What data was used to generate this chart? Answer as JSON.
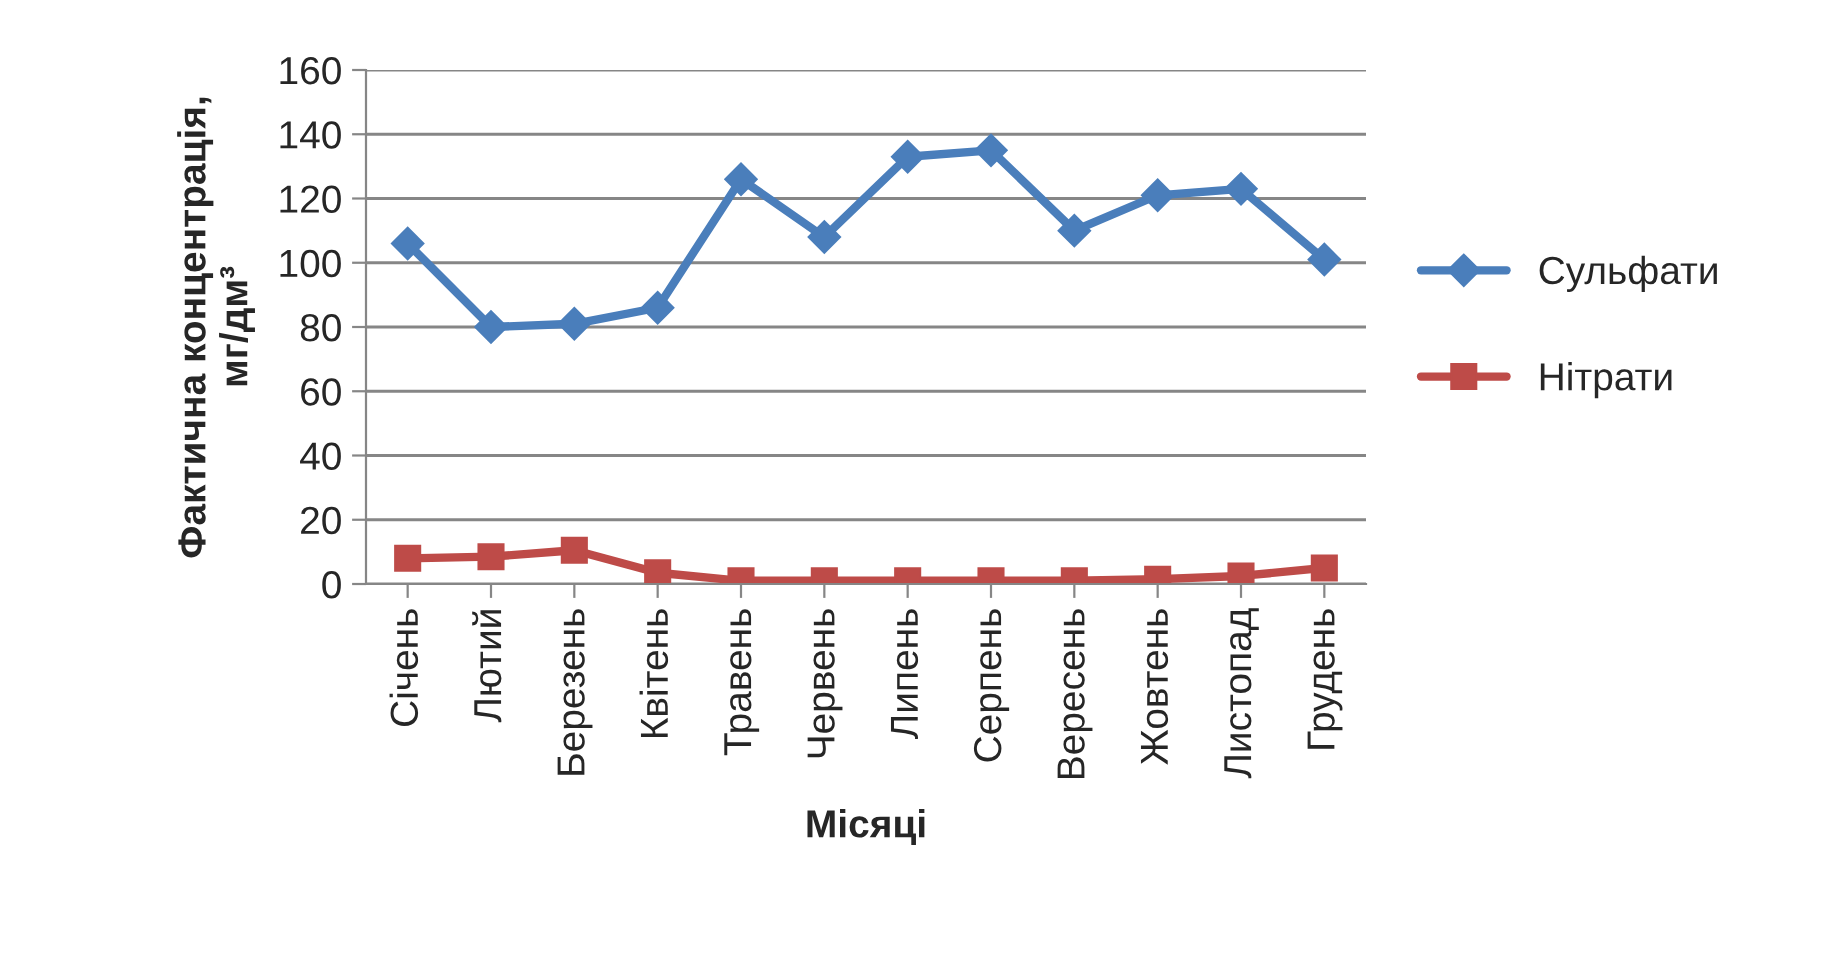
{
  "chart_data": {
    "type": "line",
    "xlabel": "Місяці",
    "ylabel": "Фактична концентрація,\nмг/дм³",
    "categories": [
      "Січень",
      "Лютий",
      "Березень",
      "Квітень",
      "Травень",
      "Червень",
      "Липень",
      "Серпень",
      "Вересень",
      "Жовтень",
      "Листопад",
      "Грудень"
    ],
    "series": [
      {
        "name": "Сульфати",
        "color": "#4a7ebb",
        "marker": "diamond",
        "values": [
          106,
          80,
          81,
          86,
          126,
          108,
          133,
          135,
          110,
          121,
          123,
          101
        ]
      },
      {
        "name": "Нітрати",
        "color": "#be4b48",
        "marker": "square",
        "values": [
          8,
          8.5,
          10.5,
          3.5,
          1,
          1,
          1,
          1,
          1,
          1.5,
          2.5,
          5
        ]
      }
    ],
    "ylim": [
      0,
      160
    ],
    "yticks": [
      0,
      20,
      40,
      60,
      80,
      100,
      120,
      140,
      160
    ],
    "grid": "y",
    "legend": "right",
    "line_style": "solid"
  }
}
